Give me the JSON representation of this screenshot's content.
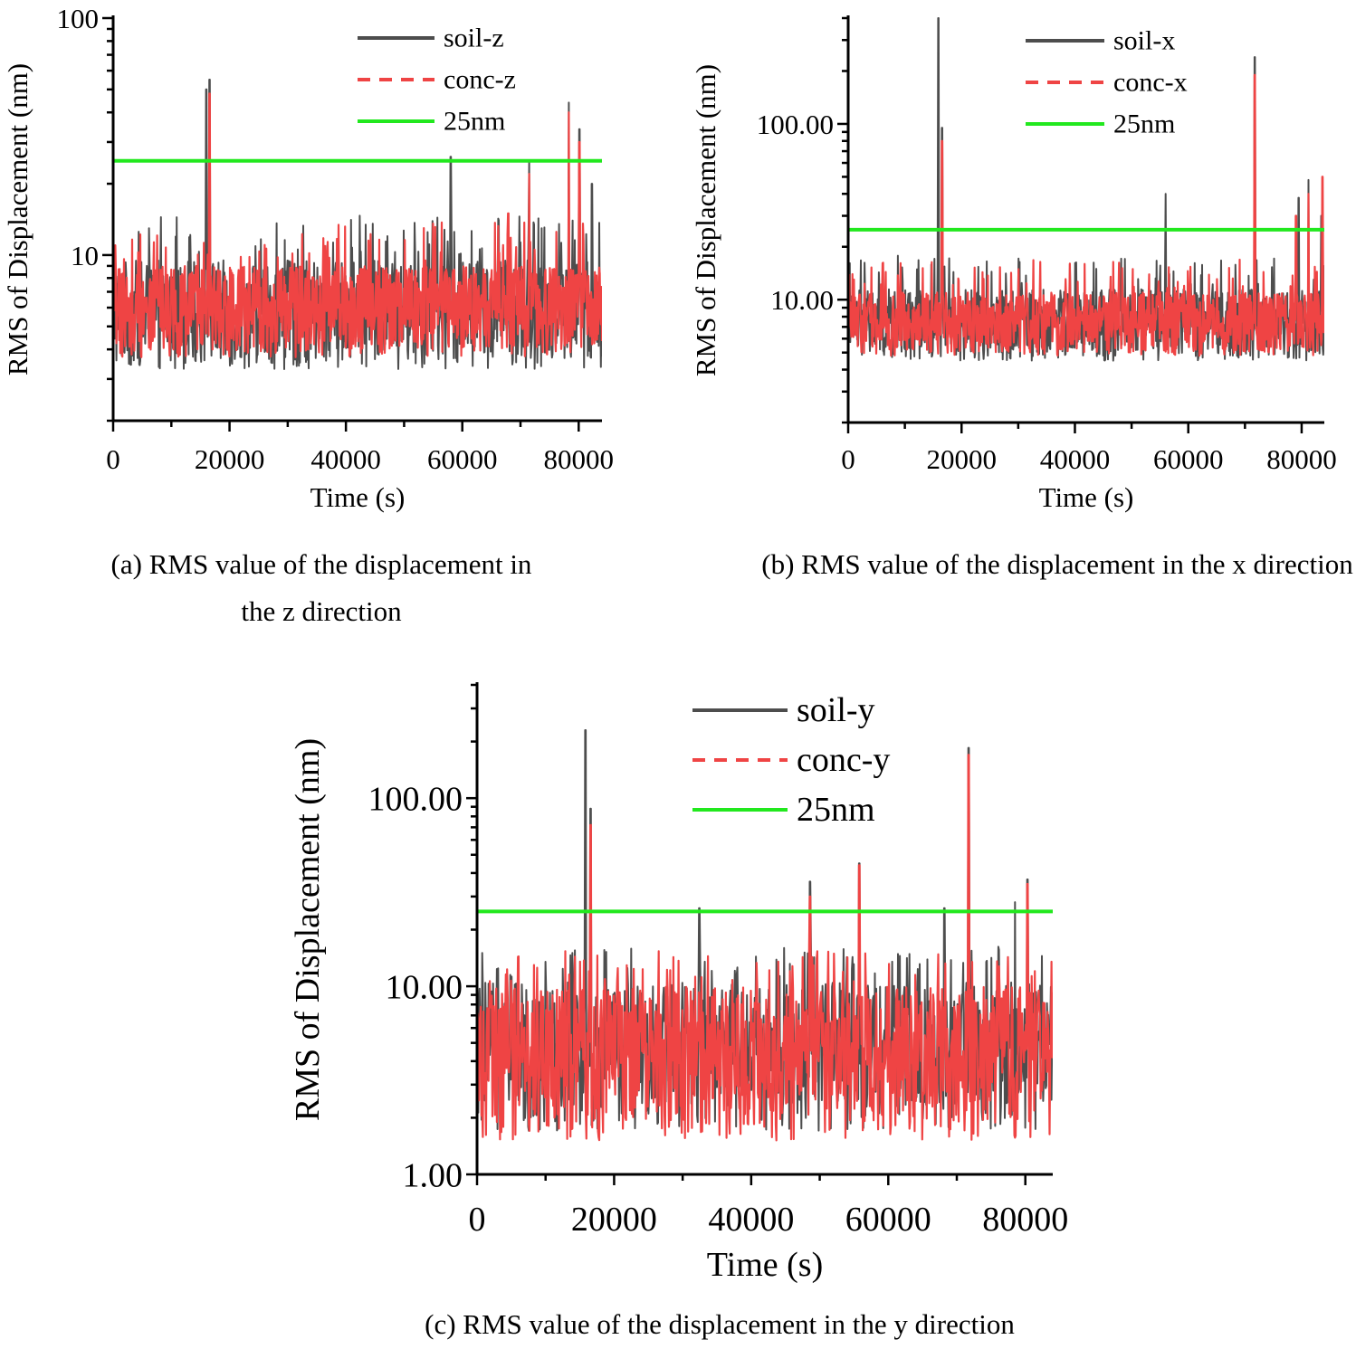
{
  "chart_data": [
    {
      "id": "a",
      "type": "line",
      "title": "(a) RMS value of the displacement in the z direction",
      "xlabel": "Time (s)",
      "ylabel": "RMS of Displacement (nm)",
      "xlim": [
        0,
        84000
      ],
      "ylim": [
        2,
        100
      ],
      "yscale": "log",
      "xticks": [
        0,
        20000,
        40000,
        60000,
        80000
      ],
      "xtick_labels": [
        "0",
        "20000",
        "40000",
        "60000",
        "80000"
      ],
      "yticks": [
        10,
        100
      ],
      "ytick_labels": [
        "10",
        "100"
      ],
      "legend_position": "top-right",
      "series": [
        {
          "name": "soil-z",
          "color": "#4d4d4d",
          "style": "solid",
          "base_low": 3.3,
          "base_high": 9.5,
          "spikes": [
            [
              16000,
              50
            ],
            [
              16600,
              55
            ],
            [
              58000,
              26
            ],
            [
              71500,
              25
            ],
            [
              78300,
              44
            ],
            [
              80100,
              34
            ],
            [
              82300,
              20
            ]
          ]
        },
        {
          "name": "conc-z",
          "color": "#ef4444",
          "style": "dashed",
          "base_low": 3.7,
          "base_high": 9.0,
          "spikes": [
            [
              16600,
              48
            ],
            [
              78300,
              40
            ],
            [
              80100,
              30
            ],
            [
              71500,
              22
            ],
            [
              67900,
              15
            ]
          ]
        },
        {
          "name": "25nm",
          "color": "#22e81e",
          "style": "solid",
          "value": 25
        }
      ]
    },
    {
      "id": "b",
      "type": "line",
      "title": "(b) RMS value of the displacement in the x direction",
      "xlabel": "Time (s)",
      "ylabel": "RMS of Displacement (nm)",
      "xlim": [
        0,
        84000
      ],
      "ylim": [
        2,
        400
      ],
      "yscale": "log",
      "xticks": [
        0,
        20000,
        40000,
        60000,
        80000
      ],
      "xtick_labels": [
        "0",
        "20000",
        "40000",
        "60000",
        "80000"
      ],
      "yticks": [
        10,
        100
      ],
      "ytick_labels": [
        "10.00",
        "100.00"
      ],
      "legend_position": "top-right",
      "series": [
        {
          "name": "soil-x",
          "color": "#4d4d4d",
          "style": "solid",
          "base_low": 4.5,
          "base_high": 11.5,
          "spikes": [
            [
              15900,
              400
            ],
            [
              16600,
              95
            ],
            [
              56000,
              40
            ],
            [
              71700,
              240
            ],
            [
              79500,
              38
            ],
            [
              81200,
              48
            ],
            [
              83500,
              30
            ]
          ]
        },
        {
          "name": "conc-x",
          "color": "#ef4444",
          "style": "dashed",
          "base_low": 4.8,
          "base_high": 11,
          "spikes": [
            [
              16600,
              80
            ],
            [
              71700,
              190
            ],
            [
              81200,
              40
            ],
            [
              83700,
              50
            ],
            [
              79000,
              30
            ]
          ]
        },
        {
          "name": "25nm",
          "color": "#22e81e",
          "style": "solid",
          "value": 25
        }
      ]
    },
    {
      "id": "c",
      "type": "line",
      "title": "(c) RMS value of the displacement in the y direction",
      "xlabel": "Time (s)",
      "ylabel": "RMS of Displacement (nm)",
      "xlim": [
        0,
        84000
      ],
      "ylim": [
        1,
        400
      ],
      "yscale": "log",
      "xticks": [
        0,
        20000,
        40000,
        60000,
        80000
      ],
      "xtick_labels": [
        "0",
        "20000",
        "40000",
        "60000",
        "80000"
      ],
      "yticks": [
        1,
        10,
        100
      ],
      "ytick_labels": [
        "1.00",
        "10.00",
        "100.00"
      ],
      "legend_position": "top-center",
      "series": [
        {
          "name": "soil-y",
          "color": "#4d4d4d",
          "style": "solid",
          "base_low": 1.7,
          "base_high": 10.5,
          "spikes": [
            [
              15800,
              230
            ],
            [
              16600,
              88
            ],
            [
              32400,
              26
            ],
            [
              48600,
              36
            ],
            [
              55800,
              45
            ],
            [
              68200,
              26
            ],
            [
              71700,
              185
            ],
            [
              78500,
              28
            ],
            [
              80300,
              37
            ]
          ]
        },
        {
          "name": "conc-y",
          "color": "#ef4444",
          "style": "dashed",
          "base_low": 1.5,
          "base_high": 10,
          "spikes": [
            [
              16600,
              72
            ],
            [
              55800,
              44
            ],
            [
              71700,
              170
            ],
            [
              80300,
              35
            ],
            [
              48600,
              30
            ]
          ]
        },
        {
          "name": "25nm",
          "color": "#22e81e",
          "style": "solid",
          "value": 25
        }
      ]
    }
  ]
}
